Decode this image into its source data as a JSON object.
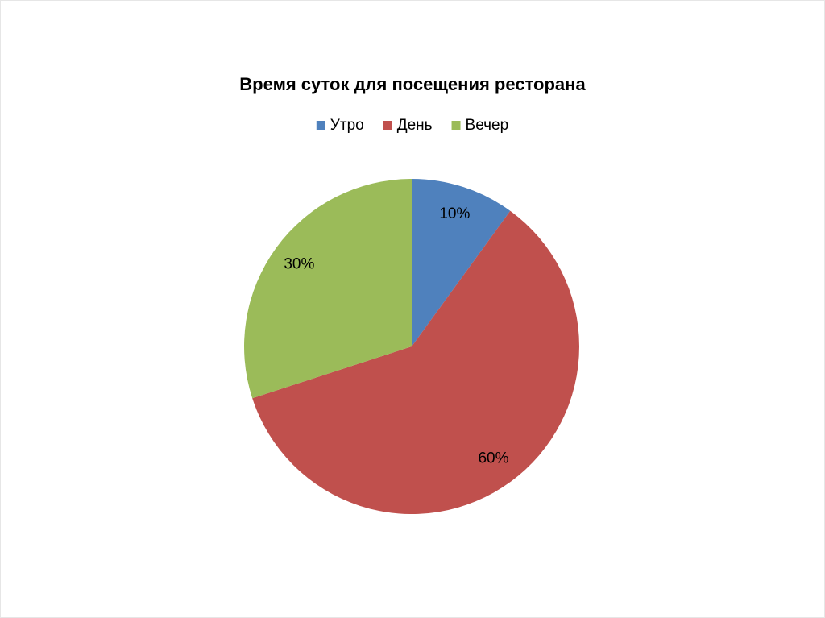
{
  "chart_data": {
    "type": "pie",
    "title": "Время суток для посещения ресторана",
    "categories": [
      "Утро",
      "День",
      "Вечер"
    ],
    "values": [
      10,
      60,
      30
    ],
    "value_labels": [
      "10%",
      "60%",
      "30%"
    ],
    "colors": [
      "#4f81bd",
      "#c0504d",
      "#9bbb59"
    ],
    "legend": "top"
  }
}
